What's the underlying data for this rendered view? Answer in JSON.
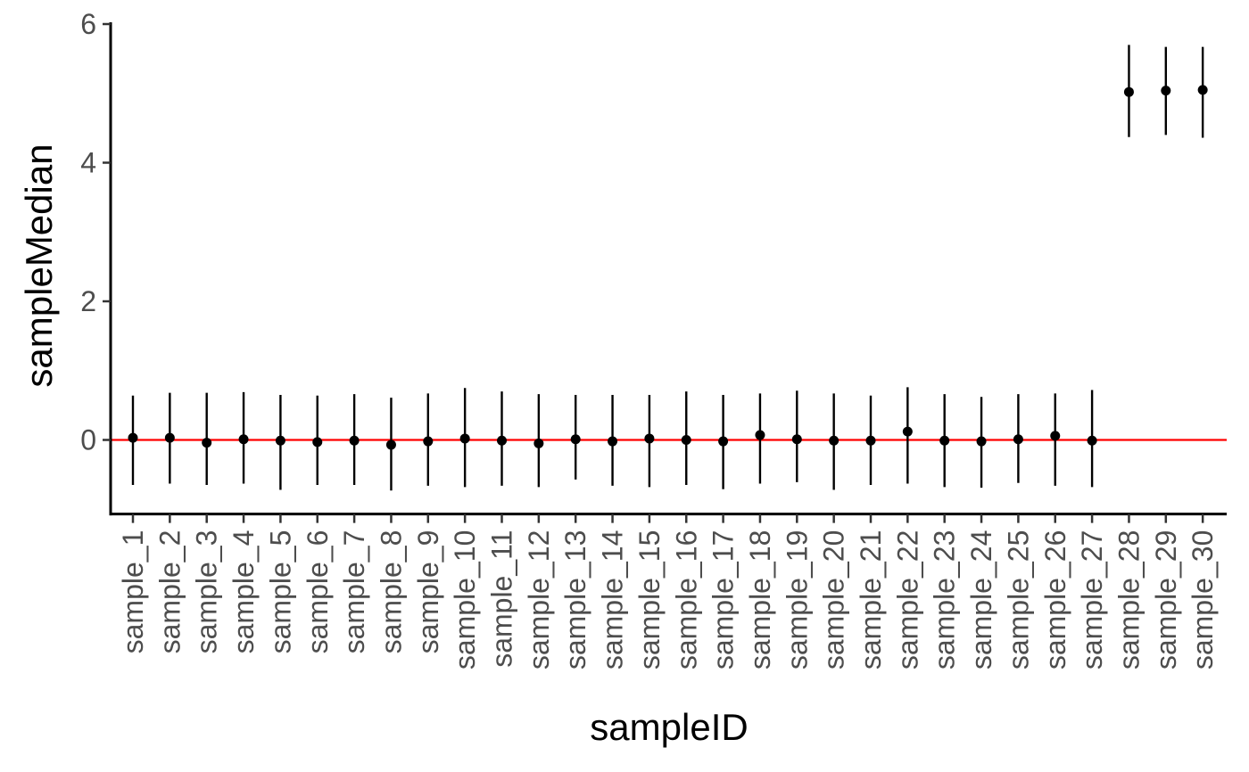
{
  "chart_data": {
    "type": "scatter",
    "title": "",
    "xlabel": "sampleID",
    "ylabel": "sampleMedian",
    "ylim": [
      -1.05,
      6
    ],
    "yticks": [
      0,
      2,
      4,
      6
    ],
    "grid": false,
    "reference_line": {
      "y": 0,
      "color": "#ff0000"
    },
    "point_color": "#000000",
    "categories": [
      "sample_1",
      "sample_2",
      "sample_3",
      "sample_4",
      "sample_5",
      "sample_6",
      "sample_7",
      "sample_8",
      "sample_9",
      "sample_10",
      "sample_11",
      "sample_12",
      "sample_13",
      "sample_14",
      "sample_15",
      "sample_16",
      "sample_17",
      "sample_18",
      "sample_19",
      "sample_20",
      "sample_21",
      "sample_22",
      "sample_23",
      "sample_24",
      "sample_25",
      "sample_26",
      "sample_27",
      "sample_28",
      "sample_29",
      "sample_30"
    ],
    "series": [
      {
        "median": [
          0.03,
          0.03,
          -0.04,
          0.01,
          -0.01,
          -0.03,
          -0.01,
          -0.07,
          -0.02,
          0.02,
          -0.01,
          -0.05,
          0.01,
          -0.02,
          0.02,
          0.0,
          -0.02,
          0.07,
          0.01,
          -0.01,
          -0.01,
          0.12,
          -0.01,
          -0.02,
          0.01,
          0.06,
          -0.01,
          5.02,
          5.04,
          5.05
        ],
        "lower": [
          -0.65,
          -0.63,
          -0.65,
          -0.63,
          -0.72,
          -0.65,
          -0.65,
          -0.73,
          -0.66,
          -0.68,
          -0.66,
          -0.68,
          -0.57,
          -0.66,
          -0.68,
          -0.65,
          -0.71,
          -0.63,
          -0.61,
          -0.72,
          -0.65,
          -0.63,
          -0.68,
          -0.69,
          -0.62,
          -0.66,
          -0.68,
          4.37,
          4.4,
          4.36
        ],
        "upper": [
          0.64,
          0.68,
          0.68,
          0.69,
          0.65,
          0.64,
          0.66,
          0.61,
          0.67,
          0.75,
          0.7,
          0.66,
          0.65,
          0.65,
          0.65,
          0.7,
          0.65,
          0.67,
          0.71,
          0.67,
          0.64,
          0.76,
          0.66,
          0.62,
          0.66,
          0.67,
          0.72,
          5.7,
          5.67,
          5.67
        ]
      }
    ]
  }
}
